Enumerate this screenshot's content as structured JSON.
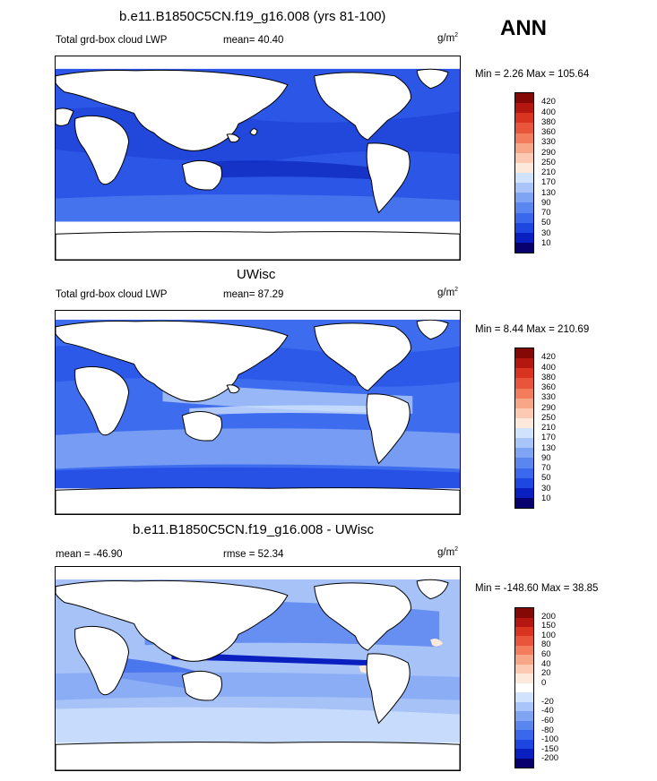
{
  "season": "ANN",
  "panels": [
    {
      "title": "b.e11.B1850C5CN.f19_g16.008 (yrs 81-100)",
      "left_label": "Total grd-box cloud LWP",
      "mid_label": "mean=  40.40",
      "unit_base": "g/m",
      "unit_exp": "2",
      "minmax": "Min =   2.26 Max = 105.64",
      "colorbar": {
        "colors": [
          "#08006e",
          "#0a1fbf",
          "#1e46e0",
          "#3a68ec",
          "#5a86f0",
          "#80a4f4",
          "#a8c4f8",
          "#d0e2fc",
          "#fde9dc",
          "#fccab2",
          "#f8a688",
          "#f27c5c",
          "#e9553a",
          "#d93420",
          "#b3170f",
          "#830806"
        ],
        "labels": [
          "10",
          "30",
          "50",
          "70",
          "90",
          "130",
          "170",
          "210",
          "250",
          "290",
          "330",
          "360",
          "380",
          "400",
          "420"
        ]
      }
    },
    {
      "title": "UWisc",
      "left_label": "Total grd-box cloud LWP",
      "mid_label": "mean=  87.29",
      "unit_base": "g/m",
      "unit_exp": "2",
      "minmax": "Min =   8.44 Max = 210.69",
      "colorbar": {
        "colors": [
          "#08006e",
          "#0a1fbf",
          "#1e46e0",
          "#3a68ec",
          "#5a86f0",
          "#80a4f4",
          "#a8c4f8",
          "#d0e2fc",
          "#fde9dc",
          "#fccab2",
          "#f8a688",
          "#f27c5c",
          "#e9553a",
          "#d93420",
          "#b3170f",
          "#830806"
        ],
        "labels": [
          "10",
          "30",
          "50",
          "70",
          "90",
          "130",
          "170",
          "210",
          "250",
          "290",
          "330",
          "360",
          "380",
          "400",
          "420"
        ]
      }
    },
    {
      "title": "b.e11.B1850C5CN.f19_g16.008 - UWisc",
      "left_label": "mean = -46.90",
      "mid_label": "rmse =  52.34",
      "unit_base": "g/m",
      "unit_exp": "2",
      "minmax": "Min = -148.60 Max =  38.85",
      "colorbar": {
        "colors": [
          "#08006e",
          "#0a1fbf",
          "#1e46e0",
          "#3a68ec",
          "#5a86f0",
          "#80a4f4",
          "#a8c4f8",
          "#d0e2fc",
          "#ffffff",
          "#fde9dc",
          "#fccab2",
          "#f8a688",
          "#f27c5c",
          "#e9553a",
          "#d93420",
          "#b3170f",
          "#830806"
        ],
        "labels": [
          "-200",
          "-150",
          "-100",
          "-80",
          "-60",
          "-40",
          "-20",
          "",
          "0",
          "20",
          "40",
          "60",
          "80",
          "100",
          "150",
          "200"
        ]
      }
    }
  ],
  "map_fill": {
    "panel1_ocean": "#2c56e6",
    "panel2_ocean": "#3e6cee",
    "panel3_ocean": "#a6c2f7",
    "land": "#ffffff",
    "coast": "#000000"
  }
}
